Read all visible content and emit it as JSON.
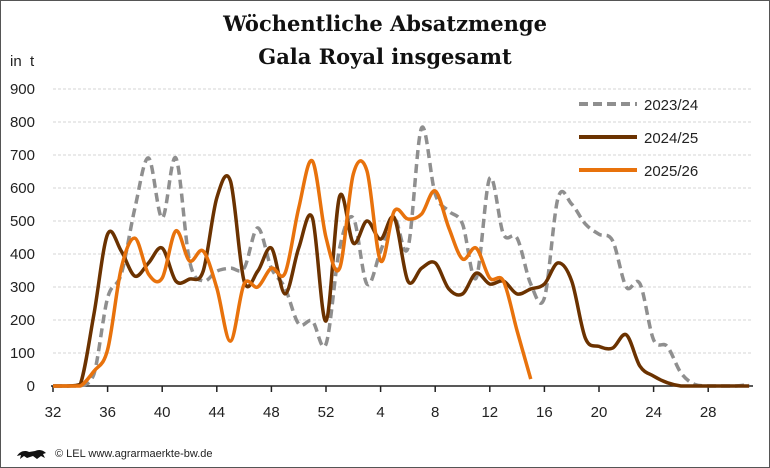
{
  "chart_data": {
    "type": "line",
    "title": "Wöchentliche Absatzmenge",
    "subtitle": "Gala Royal insgesamt",
    "ylabel": "in  t",
    "xlabel": "",
    "ylim": [
      0,
      900
    ],
    "yticks": [
      "0",
      "100",
      "200",
      "300",
      "400",
      "500",
      "600",
      "700",
      "800",
      "900"
    ],
    "weeks": [
      32,
      33,
      34,
      35,
      36,
      37,
      38,
      39,
      40,
      41,
      42,
      43,
      44,
      45,
      46,
      47,
      48,
      49,
      50,
      51,
      52,
      1,
      2,
      3,
      4,
      5,
      6,
      7,
      8,
      9,
      10,
      11,
      12,
      13,
      14,
      15,
      16,
      17,
      18,
      19,
      20,
      21,
      22,
      23,
      24,
      25,
      26,
      27,
      28,
      29,
      30,
      31
    ],
    "xtick_labels": [
      "32",
      "36",
      "40",
      "44",
      "48",
      "52",
      "4",
      "8",
      "12",
      "16",
      "20",
      "24",
      "28"
    ],
    "grid": true,
    "legend_position": "top-right",
    "series": [
      {
        "name": "2023/24",
        "color": "#8f8f8f",
        "style": "dashed",
        "values": [
          0,
          0,
          0,
          36,
          267,
          339,
          539,
          691,
          509,
          691,
          379,
          318,
          348,
          357,
          357,
          479,
          357,
          297,
          188,
          197,
          127,
          418,
          509,
          309,
          409,
          509,
          418,
          782,
          582,
          530,
          491,
          327,
          630,
          460,
          448,
          309,
          267,
          570,
          551,
          491,
          460,
          440,
          300,
          310,
          140,
          120,
          40,
          5,
          0,
          0,
          0,
          5
        ]
      },
      {
        "name": "2024/25",
        "color": "#6b3200",
        "style": "solid",
        "values": [
          0,
          0,
          5,
          218,
          460,
          409,
          333,
          373,
          418,
          318,
          324,
          348,
          570,
          621,
          318,
          348,
          418,
          279,
          418,
          510,
          197,
          575,
          433,
          500,
          445,
          510,
          318,
          357,
          373,
          294,
          279,
          342,
          309,
          318,
          279,
          294,
          309,
          373,
          318,
          145,
          120,
          115,
          155,
          60,
          30,
          10,
          0,
          0,
          0,
          0,
          0,
          0
        ]
      },
      {
        "name": "2025/26",
        "color": "#e8720c",
        "style": "solid",
        "values": [
          0,
          0,
          0,
          45,
          110,
          357,
          448,
          339,
          327,
          470,
          379,
          409,
          297,
          136,
          309,
          300,
          357,
          342,
          539,
          682,
          450,
          357,
          642,
          652,
          379,
          530,
          506,
          521,
          591,
          479,
          385,
          418,
          327,
          318,
          167,
          21
        ]
      }
    ]
  },
  "footer": {
    "credit": "© LEL www.agrarmaerkte-bw.de",
    "logo_text": "Baden-Württemberg lion logo"
  }
}
